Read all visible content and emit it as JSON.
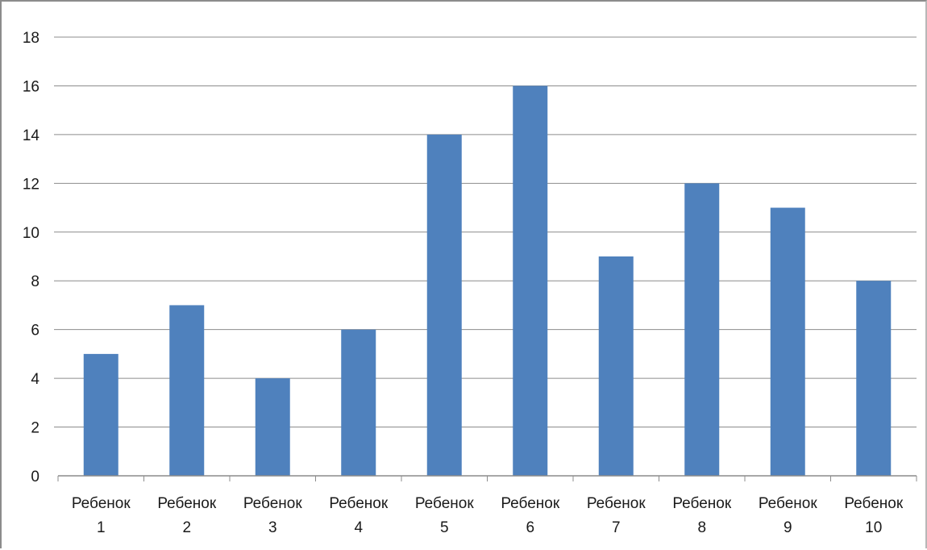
{
  "chart_data": {
    "type": "bar",
    "categories": [
      [
        "Ребенок",
        "1"
      ],
      [
        "Ребенок",
        "2"
      ],
      [
        "Ребенок",
        "3"
      ],
      [
        "Ребенок",
        "4"
      ],
      [
        "Ребенок",
        "5"
      ],
      [
        "Ребенок",
        "6"
      ],
      [
        "Ребенок",
        "7"
      ],
      [
        "Ребенок",
        "8"
      ],
      [
        "Ребенок",
        "9"
      ],
      [
        "Ребенок",
        "10"
      ]
    ],
    "values": [
      5,
      7,
      4,
      6,
      14,
      16,
      9,
      12,
      11,
      8
    ],
    "ylim": [
      0,
      18
    ],
    "yticks": [
      "0",
      "2",
      "4",
      "6",
      "8",
      "10",
      "12",
      "14",
      "16",
      "18"
    ],
    "grid": true,
    "legend": "none",
    "bar_color": "#4f81bd",
    "gridline_color": "#8c8c8c",
    "axis_color": "#8c8c8c"
  }
}
